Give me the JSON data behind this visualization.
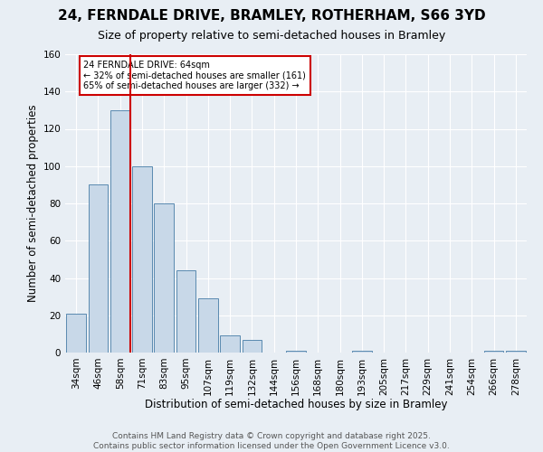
{
  "title_line1": "24, FERNDALE DRIVE, BRAMLEY, ROTHERHAM, S66 3YD",
  "title_line2": "Size of property relative to semi-detached houses in Bramley",
  "xlabel": "Distribution of semi-detached houses by size in Bramley",
  "ylabel": "Number of semi-detached properties",
  "categories": [
    "34sqm",
    "46sqm",
    "58sqm",
    "71sqm",
    "83sqm",
    "95sqm",
    "107sqm",
    "119sqm",
    "132sqm",
    "144sqm",
    "156sqm",
    "168sqm",
    "180sqm",
    "193sqm",
    "205sqm",
    "217sqm",
    "229sqm",
    "241sqm",
    "254sqm",
    "266sqm",
    "278sqm"
  ],
  "values": [
    21,
    90,
    130,
    100,
    80,
    44,
    29,
    9,
    7,
    0,
    1,
    0,
    0,
    1,
    0,
    0,
    0,
    0,
    0,
    1,
    1
  ],
  "bar_color": "#c8d8e8",
  "bar_edge_color": "#5a8ab0",
  "vline_index": 2,
  "vline_color": "#cc0000",
  "annotation_text": "24 FERNDALE DRIVE: 64sqm\n← 32% of semi-detached houses are smaller (161)\n65% of semi-detached houses are larger (332) →",
  "annotation_box_color": "#ffffff",
  "annotation_box_edge": "#cc0000",
  "ylim": [
    0,
    160
  ],
  "yticks": [
    0,
    20,
    40,
    60,
    80,
    100,
    120,
    140,
    160
  ],
  "footnote": "Contains HM Land Registry data © Crown copyright and database right 2025.\nContains public sector information licensed under the Open Government Licence v3.0.",
  "bg_color": "#e8eef4",
  "grid_color": "#ffffff",
  "title_fontsize": 11,
  "subtitle_fontsize": 9,
  "axis_label_fontsize": 8.5,
  "tick_fontsize": 7.5,
  "footnote_fontsize": 6.5
}
